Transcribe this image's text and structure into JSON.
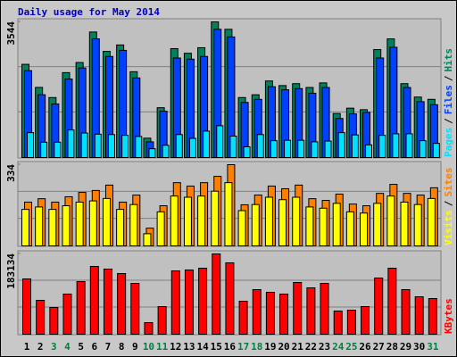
{
  "chart_data": [
    {
      "type": "bar",
      "title": "Daily usage for May 2014",
      "series": [
        {
          "name": "Hits",
          "color": "#00805c",
          "values": [
            2435,
            1832,
            1567,
            2218,
            2483,
            3279,
            2772,
            2941,
            2242,
            506,
            1302,
            2845,
            2724,
            2869,
            3544,
            3350,
            1567,
            1640,
            2000,
            1880,
            1930,
            1830,
            1950,
            1150,
            1290,
            1250,
            2820,
            3100,
            1930,
            1580,
            1520
          ]
        },
        {
          "name": "Files",
          "color": "#0040ff",
          "values": [
            2270,
            1640,
            1400,
            2050,
            2340,
            3100,
            2640,
            2800,
            2080,
            410,
            1210,
            2600,
            2570,
            2640,
            3350,
            3150,
            1440,
            1520,
            1850,
            1770,
            1800,
            1680,
            1830,
            1020,
            1140,
            1180,
            2600,
            2880,
            1830,
            1460,
            1380
          ]
        },
        {
          "name": "Pages",
          "color": "#00e0ff",
          "values": [
            650,
            400,
            400,
            720,
            640,
            610,
            600,
            580,
            550,
            230,
            320,
            600,
            500,
            690,
            830,
            560,
            280,
            600,
            440,
            450,
            450,
            410,
            430,
            650,
            590,
            330,
            580,
            620,
            620,
            440,
            370
          ]
        }
      ],
      "ylim": [
        0,
        3544
      ],
      "yticks": [
        3544
      ],
      "legend_separator": "/"
    },
    {
      "type": "bar",
      "series": [
        {
          "name": "Sites",
          "color": "#ff8000",
          "values": [
            180,
            194,
            180,
            202,
            220,
            228,
            250,
            180,
            209,
            73,
            165,
            260,
            246,
            260,
            286,
            334,
            169,
            209,
            246,
            235,
            250,
            194,
            187,
            213,
            172,
            165,
            216,
            253,
            216,
            209,
            239
          ]
        },
        {
          "name": "Visits",
          "color": "#ffff00",
          "values": [
            150,
            160,
            150,
            165,
            180,
            185,
            195,
            150,
            170,
            50,
            140,
            205,
            200,
            205,
            225,
            260,
            145,
            170,
            200,
            190,
            200,
            160,
            155,
            175,
            140,
            135,
            175,
            205,
            180,
            170,
            195
          ]
        }
      ],
      "ylim": [
        0,
        334
      ],
      "yticks": [
        334
      ],
      "legend_separator": "/"
    },
    {
      "type": "bar",
      "series": [
        {
          "name": "KBytes",
          "color": "#ff0000",
          "values": [
            126170,
            77330,
            61050,
            91570,
            120060,
            154650,
            148550,
            138370,
            115990,
            26450,
            63080,
            144470,
            146510,
            150580,
            183134,
            162790,
            75290,
            101740,
            95640,
            91570,
            118020,
            105810,
            115990,
            52910,
            54940,
            63080,
            128200,
            150580,
            101740,
            85460,
            81390
          ]
        }
      ],
      "ylim": [
        0,
        183134
      ],
      "yticks": [
        183134
      ],
      "categories": [
        "1",
        "2",
        "3",
        "4",
        "5",
        "6",
        "7",
        "8",
        "9",
        "10",
        "11",
        "12",
        "13",
        "14",
        "15",
        "16",
        "17",
        "18",
        "19",
        "20",
        "21",
        "22",
        "23",
        "24",
        "25",
        "26",
        "27",
        "28",
        "29",
        "30",
        "31"
      ],
      "category_colors": [
        "#000000",
        "#000000",
        "#008040",
        "#008040",
        "#000000",
        "#000000",
        "#000000",
        "#000000",
        "#000000",
        "#008040",
        "#008040",
        "#000000",
        "#000000",
        "#000000",
        "#000000",
        "#000000",
        "#008040",
        "#008040",
        "#000000",
        "#000000",
        "#000000",
        "#000000",
        "#000000",
        "#008040",
        "#008040",
        "#000000",
        "#000000",
        "#000000",
        "#000000",
        "#000000",
        "#008040"
      ]
    }
  ]
}
